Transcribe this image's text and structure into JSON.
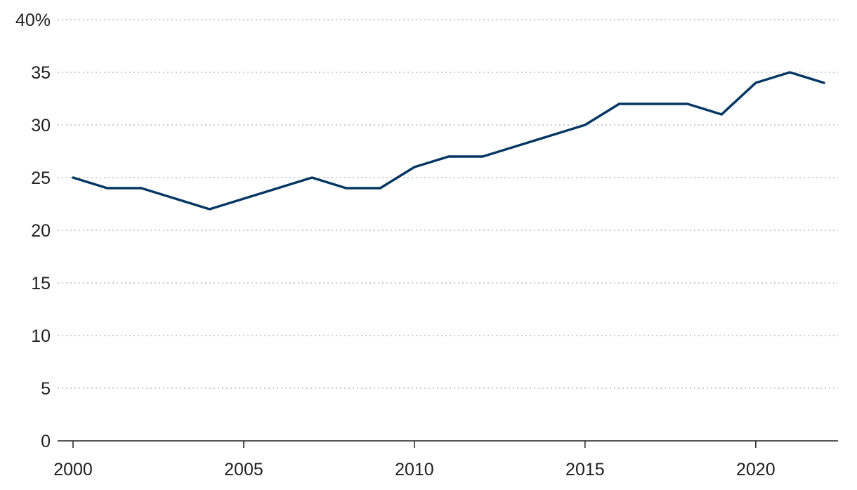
{
  "chart_data": {
    "type": "line",
    "title": "",
    "xlabel": "",
    "ylabel": "",
    "x": [
      2000,
      2001,
      2002,
      2003,
      2004,
      2005,
      2006,
      2007,
      2008,
      2009,
      2010,
      2011,
      2012,
      2013,
      2014,
      2015,
      2016,
      2017,
      2018,
      2019,
      2020,
      2021,
      2022
    ],
    "series": [
      {
        "values": [
          25,
          24,
          24,
          23,
          22,
          23,
          24,
          25,
          24,
          24,
          26,
          27,
          27,
          28,
          29,
          30,
          32,
          32,
          32,
          31,
          34,
          35,
          34
        ],
        "color": "#063763"
      }
    ],
    "xlim": [
      2000,
      2022
    ],
    "ylim": [
      0,
      40
    ],
    "x_ticks": [
      2000,
      2005,
      2010,
      2015,
      2020
    ],
    "x_tick_labels": [
      "2000",
      "2005",
      "2010",
      "2015",
      "2020"
    ],
    "y_ticks": [
      0,
      5,
      10,
      15,
      20,
      25,
      30,
      35,
      40
    ],
    "y_tick_labels": [
      "0",
      "5",
      "10",
      "15",
      "20",
      "25",
      "30",
      "35",
      "40%"
    ],
    "grid": "horizontal-dotted",
    "legend": "none"
  }
}
